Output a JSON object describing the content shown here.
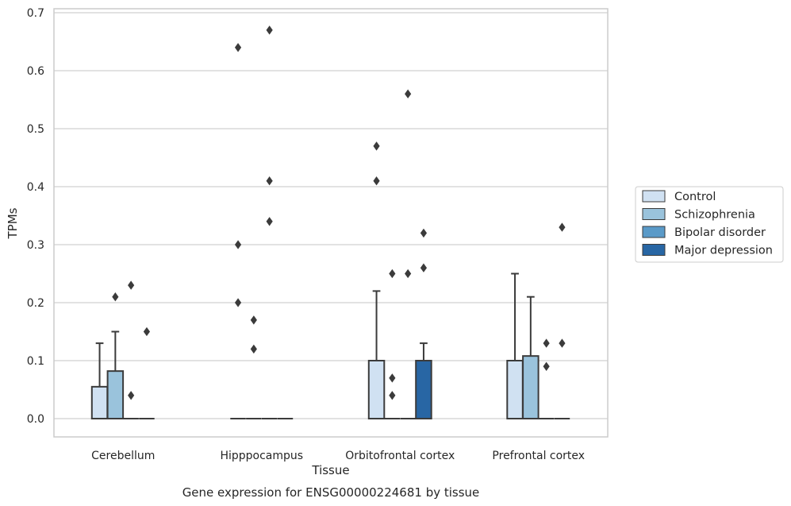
{
  "chart_data": {
    "type": "box",
    "title": "Gene expression for ENSG00000224681 by tissue",
    "xlabel": "Tissue",
    "ylabel": "TPMs",
    "ylim": [
      -0.032,
      0.705
    ],
    "yticks": [
      0.0,
      0.1,
      0.2,
      0.3,
      0.4,
      0.5,
      0.6,
      0.7
    ],
    "ytick_labels": [
      "0.0",
      "0.1",
      "0.2",
      "0.3",
      "0.4",
      "0.5",
      "0.6",
      "0.7"
    ],
    "grid": "horizontal",
    "legend_position": "right",
    "categories": [
      "Cerebellum",
      "Hipppocampus",
      "Orbitofrontal cortex",
      "Prefrontal cortex"
    ],
    "series": [
      {
        "name": "Control",
        "color": "#d0e1f2",
        "boxes": [
          {
            "q1": 0.0,
            "median": 0.0,
            "q3": 0.055,
            "whisker_low": 0.0,
            "whisker_high": 0.13,
            "outliers": []
          },
          {
            "q1": 0.0,
            "median": 0.0,
            "q3": 0.0,
            "whisker_low": 0.0,
            "whisker_high": 0.0,
            "outliers": [
              0.2,
              0.3,
              0.64
            ]
          },
          {
            "q1": 0.0,
            "median": 0.0,
            "q3": 0.1,
            "whisker_low": 0.0,
            "whisker_high": 0.22,
            "outliers": [
              0.41,
              0.47
            ]
          },
          {
            "q1": 0.0,
            "median": 0.0,
            "q3": 0.1,
            "whisker_low": 0.0,
            "whisker_high": 0.25,
            "outliers": []
          }
        ]
      },
      {
        "name": "Schizophrenia",
        "color": "#9ac3dc",
        "boxes": [
          {
            "q1": 0.0,
            "median": 0.0,
            "q3": 0.082,
            "whisker_low": 0.0,
            "whisker_high": 0.15,
            "outliers": [
              0.21
            ]
          },
          {
            "q1": 0.0,
            "median": 0.0,
            "q3": 0.0,
            "whisker_low": 0.0,
            "whisker_high": 0.0,
            "outliers": [
              0.12,
              0.17
            ]
          },
          {
            "q1": 0.0,
            "median": 0.0,
            "q3": 0.0,
            "whisker_low": 0.0,
            "whisker_high": 0.0,
            "outliers": [
              0.04,
              0.07,
              0.25
            ]
          },
          {
            "q1": 0.0,
            "median": 0.0,
            "q3": 0.108,
            "whisker_low": 0.0,
            "whisker_high": 0.21,
            "outliers": []
          }
        ]
      },
      {
        "name": "Bipolar disorder",
        "color": "#5a9ac8",
        "boxes": [
          {
            "q1": 0.0,
            "median": 0.0,
            "q3": 0.0,
            "whisker_low": 0.0,
            "whisker_high": 0.0,
            "outliers": [
              0.04,
              0.23
            ]
          },
          {
            "q1": 0.0,
            "median": 0.0,
            "q3": 0.0,
            "whisker_low": 0.0,
            "whisker_high": 0.0,
            "outliers": [
              0.34,
              0.41,
              0.67
            ]
          },
          {
            "q1": 0.0,
            "median": 0.0,
            "q3": 0.0,
            "whisker_low": 0.0,
            "whisker_high": 0.0,
            "outliers": [
              0.25,
              0.56
            ]
          },
          {
            "q1": 0.0,
            "median": 0.0,
            "q3": 0.0,
            "whisker_low": 0.0,
            "whisker_high": 0.0,
            "outliers": [
              0.09,
              0.13
            ]
          }
        ]
      },
      {
        "name": "Major depression",
        "color": "#2866a4",
        "boxes": [
          {
            "q1": 0.0,
            "median": 0.0,
            "q3": 0.0,
            "whisker_low": 0.0,
            "whisker_high": 0.0,
            "outliers": [
              0.15
            ]
          },
          {
            "q1": 0.0,
            "median": 0.0,
            "q3": 0.0,
            "whisker_low": 0.0,
            "whisker_high": 0.0,
            "outliers": []
          },
          {
            "q1": 0.0,
            "median": 0.0,
            "q3": 0.1,
            "whisker_low": 0.0,
            "whisker_high": 0.13,
            "outliers": [
              0.26,
              0.32
            ]
          },
          {
            "q1": 0.0,
            "median": 0.0,
            "q3": 0.0,
            "whisker_low": 0.0,
            "whisker_high": 0.0,
            "outliers": [
              0.13,
              0.33
            ]
          }
        ]
      }
    ]
  }
}
